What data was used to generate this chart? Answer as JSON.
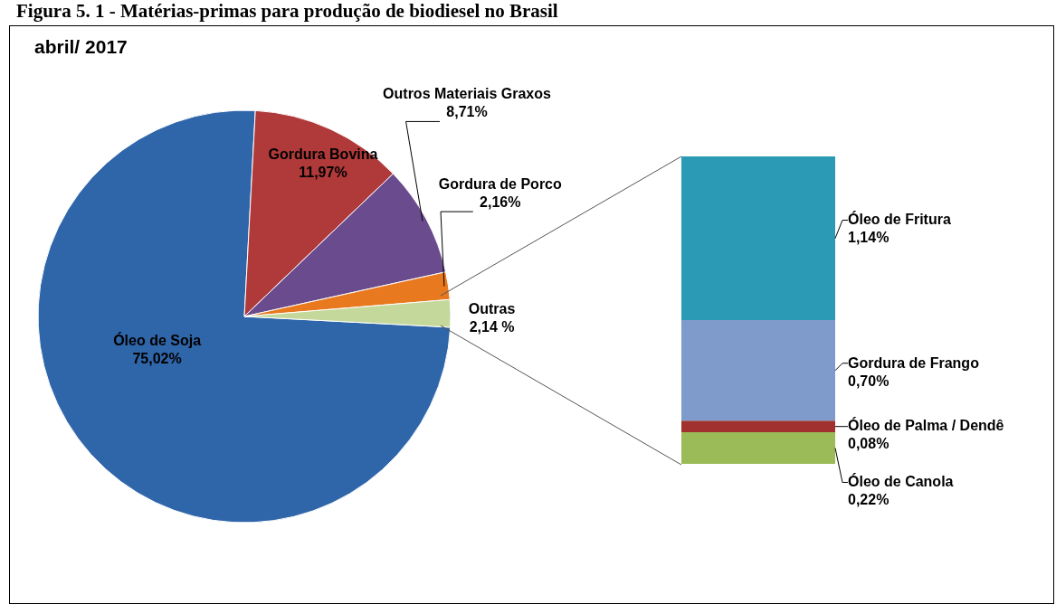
{
  "chart_data": [
    {
      "type": "pie",
      "title": "Figura 5. 1 - Matérias-primas para produção de biodiesel no Brasil",
      "subtitle": "abril/ 2017",
      "categories": [
        "Óleo de Soja",
        "Gordura Bovina",
        "Outros Materiais Graxos",
        "Gordura de Porco",
        "Outras"
      ],
      "values": [
        75.02,
        11.97,
        8.71,
        2.16,
        2.14
      ],
      "colors": [
        "#2f65a9",
        "#b0393a",
        "#6a4b8d",
        "#e8791f",
        "#c5d89c"
      ],
      "value_labels": [
        "75,02%",
        "11,97%",
        "8,71%",
        "2,16%",
        "2,14 %"
      ]
    },
    {
      "type": "bar",
      "stacked": true,
      "categories": [
        null
      ],
      "series": [
        {
          "name": "Óleo de Canola",
          "color": "#9bbb59",
          "values": [
            0.22
          ],
          "value_labels": [
            "0,22%"
          ]
        },
        {
          "name": "Óleo de Palma / Dendê",
          "color": "#a0312e",
          "values": [
            0.08
          ],
          "value_labels": [
            "0,08%"
          ]
        },
        {
          "name": "Gordura de Frango",
          "color": "#7f9bcc",
          "values": [
            0.7
          ],
          "value_labels": [
            "0,70%"
          ]
        },
        {
          "name": "Óleo de Fritura",
          "color": "#2a9ab5",
          "values": [
            1.14
          ],
          "value_labels": [
            "1,14%"
          ]
        }
      ]
    }
  ]
}
